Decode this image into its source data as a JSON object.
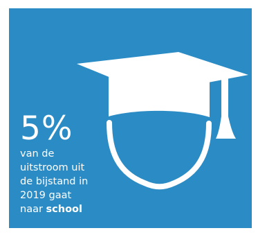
{
  "infographic": {
    "background_color": "#2b8cc5",
    "icon_color": "#ffffff",
    "icon": "graduation-cap-head-icon",
    "value": "5%",
    "text_lines": [
      "van de",
      "uitstroom uit",
      "de bijstand in",
      "2019 gaat"
    ],
    "last_line_prefix": "naar ",
    "last_line_emphasis": "school"
  }
}
